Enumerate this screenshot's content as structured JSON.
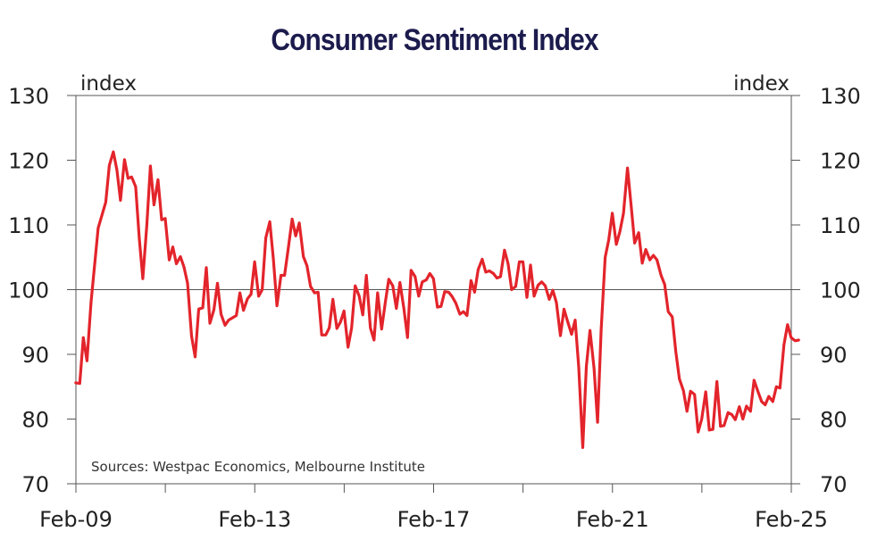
{
  "chart_data": {
    "type": "line",
    "title": "Consumer Sentiment Index",
    "ylabel_left": "index",
    "ylabel_right": "index",
    "ylim": [
      70,
      130
    ],
    "yticks": [
      70,
      80,
      90,
      100,
      110,
      120,
      130
    ],
    "reference_line": 100,
    "xlim": [
      2009.0833,
      2025.0833
    ],
    "xticks": [
      {
        "x": 2009.0833,
        "label": "Feb-09"
      },
      {
        "x": 2013.0833,
        "label": "Feb-13"
      },
      {
        "x": 2017.0833,
        "label": "Feb-17"
      },
      {
        "x": 2021.0833,
        "label": "Feb-21"
      },
      {
        "x": 2025.0833,
        "label": "Feb-25"
      }
    ],
    "minor_xticks": [
      2011.0833,
      2015.0833,
      2019.0833,
      2023.0833
    ],
    "source": "Sources: Westpac Economics, Melbourne Institute",
    "series": [
      {
        "name": "Consumer Sentiment Index",
        "color": "#e3242b",
        "points": [
          [
            2009.08,
            85.6
          ],
          [
            2009.17,
            85.5
          ],
          [
            2009.25,
            92.6
          ],
          [
            2009.33,
            89.0
          ],
          [
            2009.42,
            98.0
          ],
          [
            2009.58,
            109.5
          ],
          [
            2009.75,
            113.5
          ],
          [
            2009.83,
            119.2
          ],
          [
            2009.92,
            121.3
          ],
          [
            2010.0,
            118.5
          ],
          [
            2010.08,
            113.8
          ],
          [
            2010.17,
            120.1
          ],
          [
            2010.25,
            117.2
          ],
          [
            2010.33,
            117.4
          ],
          [
            2010.42,
            115.9
          ],
          [
            2010.5,
            108.0
          ],
          [
            2010.58,
            101.7
          ],
          [
            2010.67,
            110.0
          ],
          [
            2010.75,
            119.1
          ],
          [
            2010.83,
            113.1
          ],
          [
            2010.92,
            117.0
          ],
          [
            2011.0,
            110.8
          ],
          [
            2011.08,
            111.0
          ],
          [
            2011.17,
            104.6
          ],
          [
            2011.25,
            106.6
          ],
          [
            2011.33,
            104.0
          ],
          [
            2011.42,
            105.1
          ],
          [
            2011.5,
            103.5
          ],
          [
            2011.58,
            101.0
          ],
          [
            2011.67,
            92.8
          ],
          [
            2011.75,
            89.6
          ],
          [
            2011.83,
            97.0
          ],
          [
            2011.92,
            97.2
          ],
          [
            2012.0,
            103.4
          ],
          [
            2012.08,
            94.8
          ],
          [
            2012.17,
            96.9
          ],
          [
            2012.25,
            101.0
          ],
          [
            2012.33,
            96.2
          ],
          [
            2012.42,
            94.5
          ],
          [
            2012.5,
            95.3
          ],
          [
            2012.67,
            96.0
          ],
          [
            2012.75,
            99.5
          ],
          [
            2012.83,
            96.8
          ],
          [
            2012.92,
            98.6
          ],
          [
            2013.0,
            99.3
          ],
          [
            2013.08,
            104.3
          ],
          [
            2013.17,
            99.0
          ],
          [
            2013.25,
            100.0
          ],
          [
            2013.33,
            108.0
          ],
          [
            2013.42,
            110.5
          ],
          [
            2013.5,
            104.7
          ],
          [
            2013.58,
            97.5
          ],
          [
            2013.67,
            102.2
          ],
          [
            2013.75,
            102.2
          ],
          [
            2013.83,
            106.2
          ],
          [
            2013.92,
            110.9
          ],
          [
            2014.0,
            108.3
          ],
          [
            2014.08,
            110.3
          ],
          [
            2014.17,
            105.1
          ],
          [
            2014.25,
            103.7
          ],
          [
            2014.33,
            100.5
          ],
          [
            2014.42,
            99.5
          ],
          [
            2014.5,
            99.6
          ],
          [
            2014.58,
            93.0
          ],
          [
            2014.67,
            93.0
          ],
          [
            2014.75,
            94.1
          ],
          [
            2014.83,
            98.5
          ],
          [
            2014.92,
            94.0
          ],
          [
            2015.0,
            95.0
          ],
          [
            2015.08,
            96.7
          ],
          [
            2015.17,
            91.1
          ],
          [
            2015.25,
            94.1
          ],
          [
            2015.33,
            100.6
          ],
          [
            2015.42,
            99.0
          ],
          [
            2015.5,
            96.1
          ],
          [
            2015.58,
            102.2
          ],
          [
            2015.67,
            94.1
          ],
          [
            2015.75,
            92.2
          ],
          [
            2015.83,
            99.5
          ],
          [
            2015.92,
            93.9
          ],
          [
            2016.0,
            97.9
          ],
          [
            2016.08,
            101.6
          ],
          [
            2016.17,
            100.6
          ],
          [
            2016.25,
            97.1
          ],
          [
            2016.33,
            101.1
          ],
          [
            2016.42,
            97.0
          ],
          [
            2016.5,
            92.6
          ],
          [
            2016.58,
            103.0
          ],
          [
            2016.67,
            102.0
          ],
          [
            2016.75,
            99.0
          ],
          [
            2016.83,
            101.2
          ],
          [
            2016.92,
            101.5
          ],
          [
            2017.0,
            102.5
          ],
          [
            2017.08,
            101.7
          ],
          [
            2017.17,
            97.3
          ],
          [
            2017.25,
            97.4
          ],
          [
            2017.33,
            99.7
          ],
          [
            2017.42,
            99.6
          ],
          [
            2017.5,
            98.9
          ],
          [
            2017.58,
            97.9
          ],
          [
            2017.67,
            96.2
          ],
          [
            2017.75,
            96.6
          ],
          [
            2017.83,
            96.0
          ],
          [
            2017.92,
            101.4
          ],
          [
            2018.0,
            99.6
          ],
          [
            2018.08,
            103.1
          ],
          [
            2018.17,
            104.7
          ],
          [
            2018.25,
            102.7
          ],
          [
            2018.33,
            102.9
          ],
          [
            2018.42,
            102.5
          ],
          [
            2018.5,
            101.8
          ],
          [
            2018.58,
            102.0
          ],
          [
            2018.67,
            106.1
          ],
          [
            2018.75,
            104.0
          ],
          [
            2018.83,
            100.0
          ],
          [
            2018.92,
            100.5
          ],
          [
            2019.0,
            104.3
          ],
          [
            2019.08,
            104.3
          ],
          [
            2019.17,
            98.8
          ],
          [
            2019.25,
            103.8
          ],
          [
            2019.33,
            99.0
          ],
          [
            2019.42,
            100.7
          ],
          [
            2019.5,
            101.2
          ],
          [
            2019.58,
            100.6
          ],
          [
            2019.67,
            98.5
          ],
          [
            2019.75,
            99.9
          ],
          [
            2019.83,
            98.0
          ],
          [
            2019.92,
            92.9
          ],
          [
            2020.0,
            97.0
          ],
          [
            2020.08,
            95.1
          ],
          [
            2020.17,
            93.1
          ],
          [
            2020.25,
            95.3
          ],
          [
            2020.33,
            88.0
          ],
          [
            2020.42,
            75.6
          ],
          [
            2020.5,
            88.1
          ],
          [
            2020.58,
            93.7
          ],
          [
            2020.67,
            87.9
          ],
          [
            2020.75,
            79.5
          ],
          [
            2020.83,
            93.8
          ],
          [
            2020.92,
            105.0
          ],
          [
            2021.0,
            107.7
          ],
          [
            2021.08,
            111.8
          ],
          [
            2021.17,
            107.0
          ],
          [
            2021.25,
            109.0
          ],
          [
            2021.33,
            111.8
          ],
          [
            2021.42,
            118.8
          ],
          [
            2021.5,
            113.1
          ],
          [
            2021.58,
            107.2
          ],
          [
            2021.67,
            108.8
          ],
          [
            2021.75,
            104.1
          ],
          [
            2021.83,
            106.2
          ],
          [
            2021.92,
            104.6
          ],
          [
            2022.0,
            105.3
          ],
          [
            2022.08,
            104.6
          ],
          [
            2022.17,
            102.2
          ],
          [
            2022.25,
            100.8
          ],
          [
            2022.33,
            96.6
          ],
          [
            2022.42,
            95.8
          ],
          [
            2022.5,
            90.4
          ],
          [
            2022.58,
            86.2
          ],
          [
            2022.67,
            84.4
          ],
          [
            2022.75,
            81.2
          ],
          [
            2022.83,
            84.3
          ],
          [
            2022.92,
            83.8
          ],
          [
            2023.0,
            78.0
          ],
          [
            2023.08,
            80.0
          ],
          [
            2023.17,
            84.2
          ],
          [
            2023.25,
            78.3
          ],
          [
            2023.33,
            78.4
          ],
          [
            2023.42,
            85.8
          ],
          [
            2023.5,
            78.9
          ],
          [
            2023.58,
            79.0
          ],
          [
            2023.67,
            81.0
          ],
          [
            2023.75,
            80.7
          ],
          [
            2023.83,
            79.9
          ],
          [
            2023.92,
            81.9
          ],
          [
            2024.0,
            80.0
          ],
          [
            2024.08,
            82.0
          ],
          [
            2024.17,
            81.2
          ],
          [
            2024.25,
            86.0
          ],
          [
            2024.33,
            84.4
          ],
          [
            2024.42,
            82.7
          ],
          [
            2024.5,
            82.2
          ],
          [
            2024.58,
            83.5
          ],
          [
            2024.67,
            82.7
          ],
          [
            2024.75,
            85.0
          ],
          [
            2024.83,
            84.8
          ],
          [
            2024.92,
            91.5
          ],
          [
            2025.0,
            94.6
          ],
          [
            2025.08,
            92.6
          ],
          [
            2025.17,
            92.1
          ],
          [
            2025.25,
            92.2
          ]
        ]
      }
    ]
  }
}
